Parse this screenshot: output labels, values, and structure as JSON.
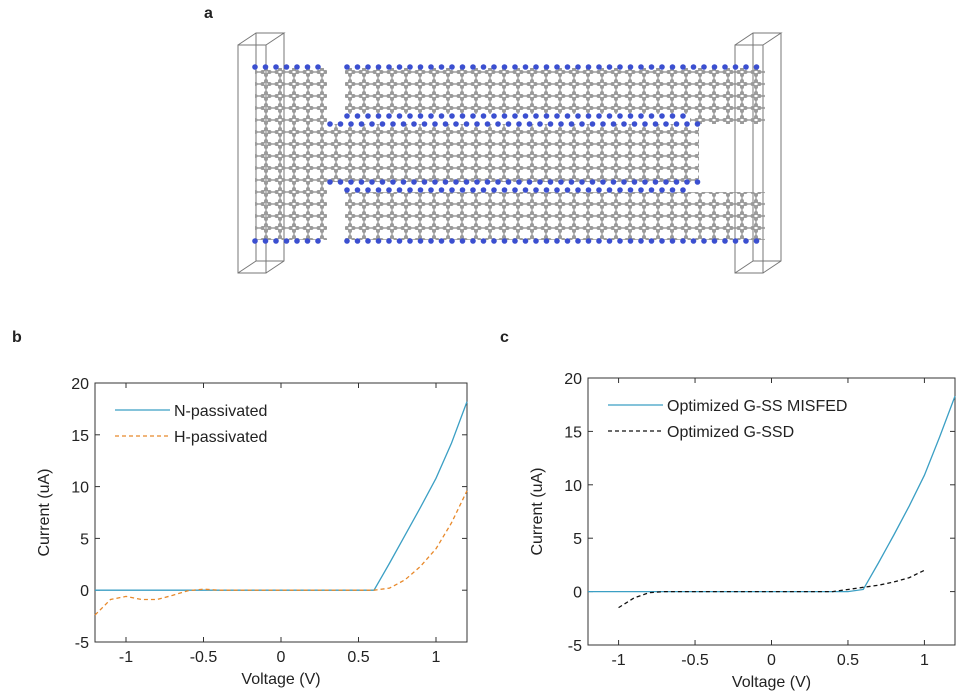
{
  "panel_a": {
    "label": "a"
  },
  "chart_data": [
    {
      "type": "line",
      "panel_label": "b",
      "x_label": "Voltage (V)",
      "y_label": "Current (uA)",
      "x": [
        -1.2,
        -1.1,
        -1.0,
        -0.9,
        -0.8,
        -0.7,
        -0.6,
        -0.5,
        -0.4,
        -0.3,
        -0.2,
        -0.1,
        0,
        0.1,
        0.2,
        0.3,
        0.4,
        0.5,
        0.6,
        0.7,
        0.8,
        0.9,
        1.0,
        1.1,
        1.2
      ],
      "series": [
        {
          "name": "N-passivated",
          "color": "#3b9fc4",
          "line_style": "solid",
          "values": [
            0,
            0,
            0,
            0,
            0,
            0,
            0,
            0,
            0,
            0,
            0,
            0,
            0,
            0,
            0,
            0,
            0,
            0,
            0,
            2.6,
            5.3,
            8.0,
            10.8,
            14.2,
            18.2
          ]
        },
        {
          "name": "H-passivated",
          "color": "#e8892b",
          "line_style": "dashed",
          "values": [
            -2.4,
            -0.9,
            -0.6,
            -0.9,
            -0.9,
            -0.5,
            -0.05,
            0.1,
            0,
            0,
            0,
            0,
            0,
            0,
            0,
            0,
            0,
            0,
            0,
            0.2,
            1.0,
            2.3,
            4.0,
            6.5,
            9.6
          ]
        }
      ],
      "xlim": [
        -1.2,
        1.2
      ],
      "xticks": [
        -1,
        -0.5,
        0,
        0.5,
        1
      ],
      "ylim": [
        -5,
        20
      ],
      "yticks": [
        -5,
        0,
        5,
        10,
        15,
        20
      ],
      "legend": "upper left"
    },
    {
      "type": "line",
      "panel_label": "c",
      "x_label": "Voltage (V)",
      "y_label": "Current (uA)",
      "x": [
        -1.2,
        -1.1,
        -1.0,
        -0.9,
        -0.8,
        -0.7,
        -0.6,
        -0.5,
        -0.4,
        -0.3,
        -0.2,
        -0.1,
        0,
        0.1,
        0.2,
        0.3,
        0.4,
        0.5,
        0.6,
        0.7,
        0.8,
        0.9,
        1.0,
        1.1,
        1.2
      ],
      "series": [
        {
          "name": "Optimized G-SS MISFED",
          "color": "#3b9fc4",
          "line_style": "solid",
          "values": [
            0,
            0,
            0,
            0,
            0,
            0,
            0,
            0,
            0,
            0,
            0,
            0,
            0,
            0,
            0,
            0,
            0,
            0,
            0.2,
            2.7,
            5.3,
            8.0,
            10.9,
            14.5,
            18.3
          ]
        },
        {
          "name": "Optimized G-SSD",
          "color": "#111111",
          "line_style": "dashed",
          "values": [
            null,
            null,
            -1.5,
            -0.6,
            -0.1,
            0,
            0,
            0,
            0,
            0,
            0,
            0,
            0,
            0,
            0,
            0,
            0,
            0.2,
            0.4,
            0.6,
            0.9,
            1.3,
            2.0,
            null,
            null
          ]
        }
      ],
      "xlim": [
        -1.2,
        1.2
      ],
      "xticks": [
        -1,
        -0.5,
        0,
        0.5,
        1
      ],
      "ylim": [
        -5,
        20
      ],
      "yticks": [
        -5,
        0,
        5,
        10,
        15,
        20
      ],
      "legend": "upper left"
    }
  ]
}
